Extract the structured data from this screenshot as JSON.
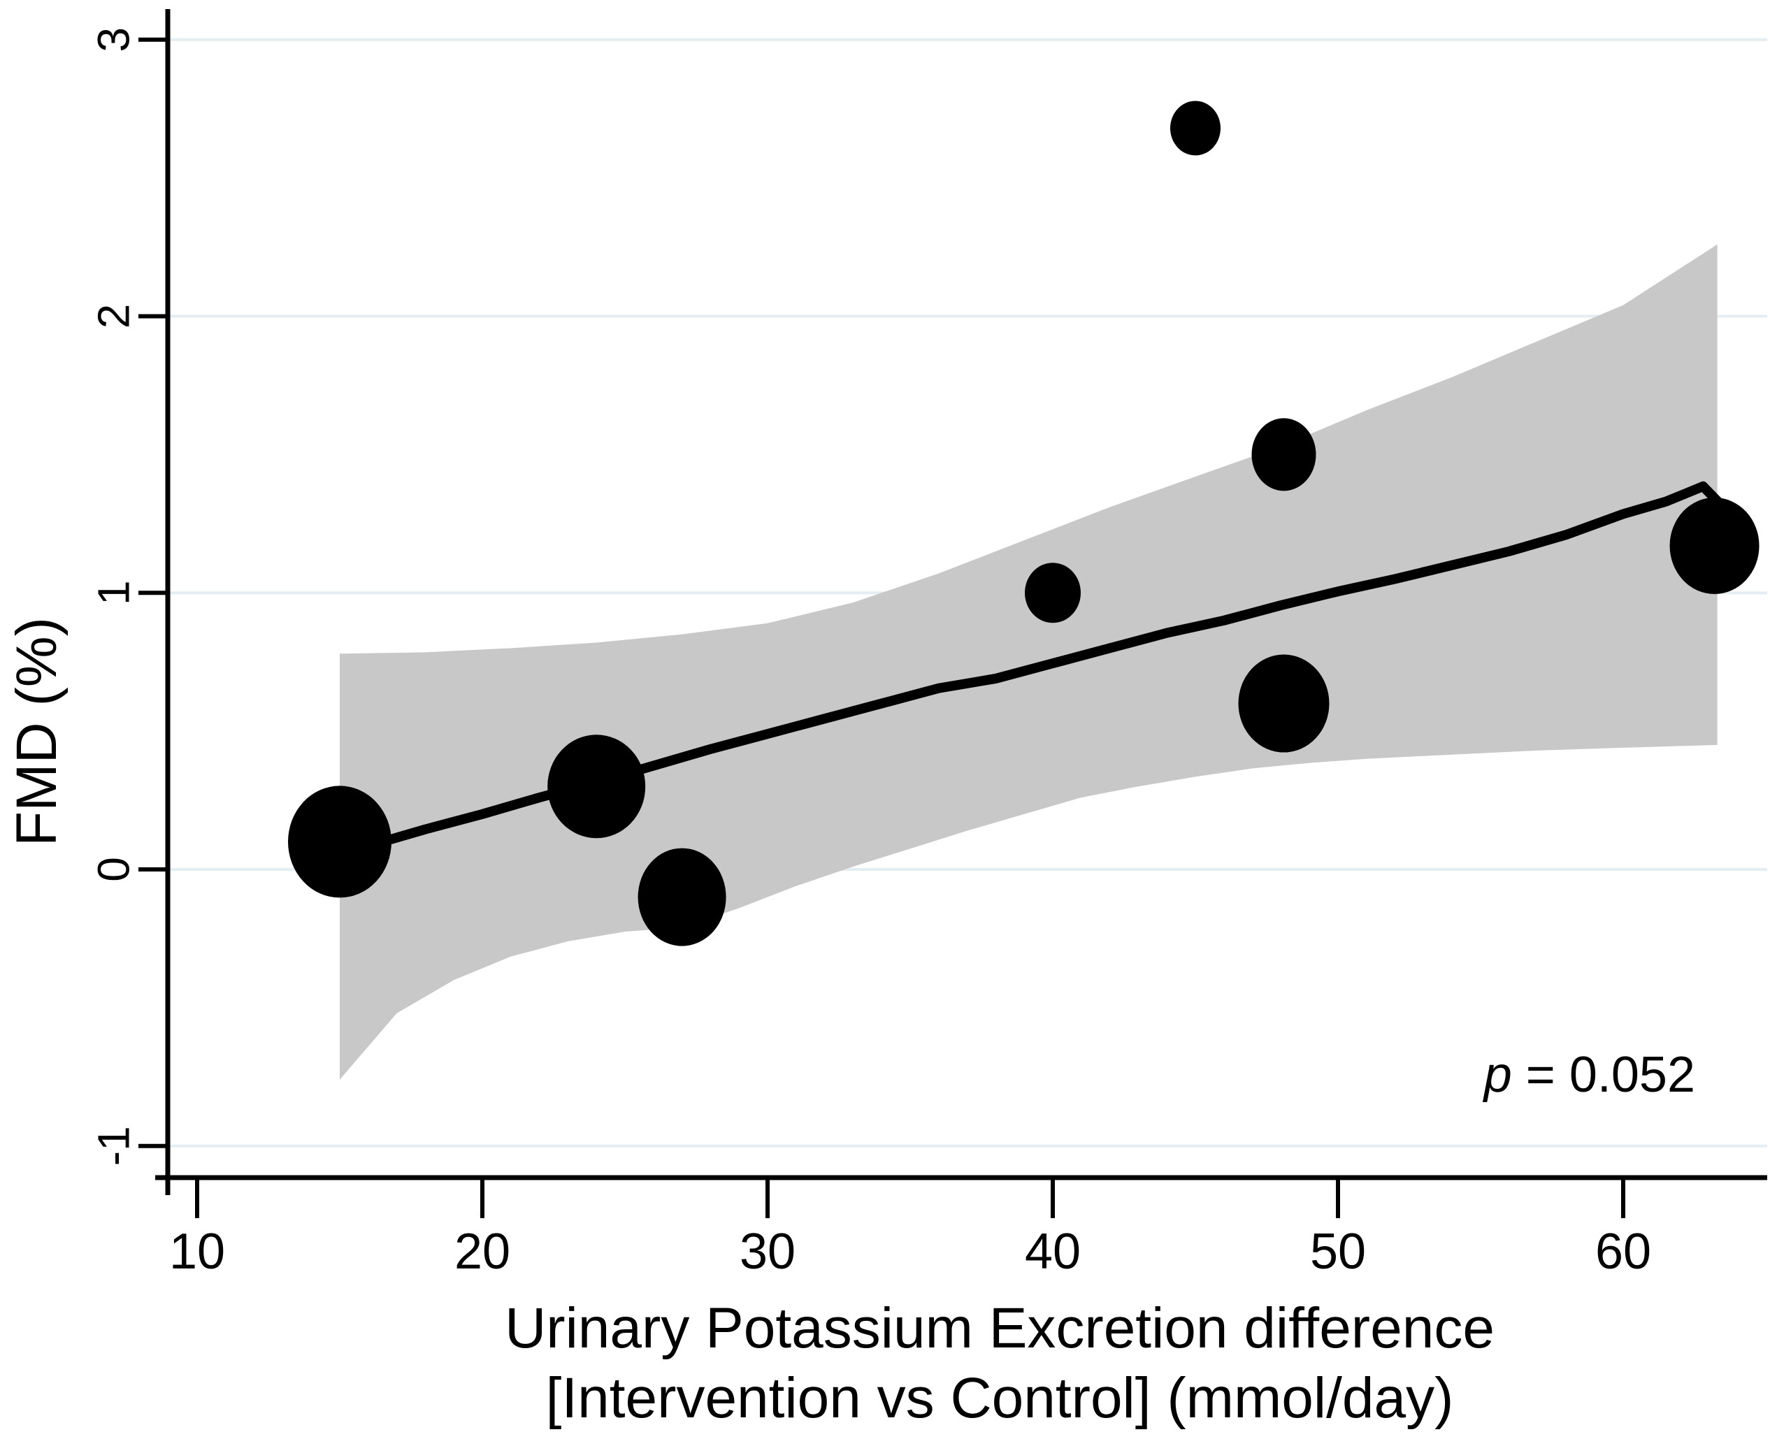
{
  "chart_data": {
    "type": "scatter",
    "subtype": "bubble-meta-regression",
    "title": "",
    "ylabel": "FMD (%)",
    "xlabel_lines": [
      "Urinary Potassium Excretion difference",
      "[Intervention vs Control] (mmol/day)"
    ],
    "annotation": {
      "symbol": "p",
      "rest": " = 0.052",
      "p_value": "0.052"
    },
    "x_ticks": [
      10,
      20,
      30,
      40,
      50,
      60
    ],
    "y_ticks": [
      -1,
      0,
      1,
      2,
      3
    ],
    "xlim": [
      8.95,
      64.6
    ],
    "ylim": [
      -1.115,
      3.11
    ],
    "grid": {
      "horizontal": true,
      "vertical": false
    },
    "legend": "none",
    "points": [
      {
        "x": 15.0,
        "y": 0.1,
        "rx": 74,
        "ry": 80
      },
      {
        "x": 24.0,
        "y": 0.3,
        "rx": 70,
        "ry": 74
      },
      {
        "x": 27.0,
        "y": -0.1,
        "rx": 63,
        "ry": 70
      },
      {
        "x": 40.0,
        "y": 1.0,
        "rx": 40,
        "ry": 43
      },
      {
        "x": 45.0,
        "y": 2.68,
        "rx": 36,
        "ry": 39
      },
      {
        "x": 48.1,
        "y": 1.5,
        "rx": 46,
        "ry": 52
      },
      {
        "x": 48.1,
        "y": 0.6,
        "rx": 65,
        "ry": 70
      },
      {
        "x": 63.2,
        "y": 1.17,
        "rx": 64,
        "ry": 69
      }
    ],
    "regression_line": [
      [
        15,
        0.06
      ],
      [
        16.5,
        0.1
      ],
      [
        18,
        0.145
      ],
      [
        20,
        0.2
      ],
      [
        22,
        0.26
      ],
      [
        24,
        0.315
      ],
      [
        26,
        0.375
      ],
      [
        28,
        0.435
      ],
      [
        30,
        0.49
      ],
      [
        32,
        0.545
      ],
      [
        34,
        0.6
      ],
      [
        36,
        0.655
      ],
      [
        38,
        0.69
      ],
      [
        40,
        0.745
      ],
      [
        42,
        0.8
      ],
      [
        44,
        0.855
      ],
      [
        46,
        0.9
      ],
      [
        48,
        0.955
      ],
      [
        50,
        1.005
      ],
      [
        52,
        1.05
      ],
      [
        54,
        1.1
      ],
      [
        56,
        1.15
      ],
      [
        58,
        1.21
      ],
      [
        60,
        1.285
      ],
      [
        61.5,
        1.33
      ],
      [
        62.8,
        1.385
      ],
      [
        63.6,
        1.3
      ]
    ],
    "ci_band": {
      "upper": [
        [
          15,
          0.78
        ],
        [
          18,
          0.785
        ],
        [
          21,
          0.8
        ],
        [
          24,
          0.82
        ],
        [
          27,
          0.85
        ],
        [
          30,
          0.89
        ],
        [
          33,
          0.965
        ],
        [
          36,
          1.07
        ],
        [
          39,
          1.19
        ],
        [
          42,
          1.31
        ],
        [
          45,
          1.42
        ],
        [
          48,
          1.53
        ],
        [
          51,
          1.66
        ],
        [
          54,
          1.78
        ],
        [
          57,
          1.91
        ],
        [
          60,
          2.04
        ],
        [
          63.3,
          2.26
        ]
      ],
      "lower": [
        [
          15,
          -0.76
        ],
        [
          17,
          -0.52
        ],
        [
          19,
          -0.4
        ],
        [
          21,
          -0.315
        ],
        [
          23,
          -0.26
        ],
        [
          25,
          -0.225
        ],
        [
          27,
          -0.21
        ],
        [
          29,
          -0.14
        ],
        [
          31,
          -0.06
        ],
        [
          33,
          0.01
        ],
        [
          35,
          0.075
        ],
        [
          37,
          0.14
        ],
        [
          39,
          0.2
        ],
        [
          41,
          0.26
        ],
        [
          43,
          0.3
        ],
        [
          45,
          0.335
        ],
        [
          47,
          0.365
        ],
        [
          49,
          0.385
        ],
        [
          51,
          0.4
        ],
        [
          54,
          0.415
        ],
        [
          57,
          0.43
        ],
        [
          60,
          0.44
        ],
        [
          63.3,
          0.45
        ]
      ]
    },
    "colors": {
      "point": "#000000",
      "line": "#000000",
      "band": "#c8c8c8",
      "grid": "#e4edf1",
      "axis": "#000000",
      "background": "#ffffff"
    }
  }
}
